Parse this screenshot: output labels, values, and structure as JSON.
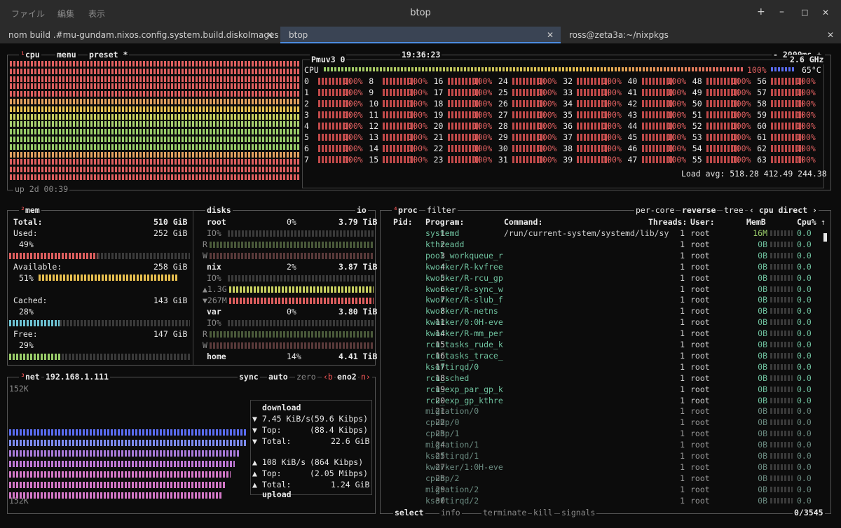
{
  "window": {
    "menu": [
      "ファイル",
      "編集",
      "表示"
    ],
    "title": "btop",
    "buttons": [
      "+",
      "–",
      "□",
      "✕"
    ]
  },
  "tabs": [
    {
      "label": "nom build .#mu-gundam.nixos.config.system.build.diskoImages"
    },
    {
      "label": "btop"
    },
    {
      "label": "ross@zeta3a:~/nixpkgs"
    }
  ],
  "cpu": {
    "key": "¹",
    "label": "cpu",
    "menu": "menu",
    "preset": "preset *",
    "clock": "19:36:23",
    "interval": "- 2000ms +",
    "model": "Pmuv3 0",
    "freq": "2.6 GHz",
    "total_label": "CPU",
    "total_pct": "100%",
    "temp": "65°C",
    "uptime": "up 2d 00:39",
    "load_label": "Load avg:",
    "load": "518.28  412.49  244.38",
    "usage": 1.0,
    "cores": [
      [
        "0",
        "100%"
      ],
      [
        "1",
        "100%"
      ],
      [
        "2",
        "100%"
      ],
      [
        "3",
        "100%"
      ],
      [
        "4",
        "100%"
      ],
      [
        "5",
        "100%"
      ],
      [
        "6",
        "100%"
      ],
      [
        "7",
        "100%"
      ],
      [
        "8",
        "100%"
      ],
      [
        "9",
        "100%"
      ],
      [
        "10",
        "100%"
      ],
      [
        "11",
        "100%"
      ],
      [
        "12",
        "100%"
      ],
      [
        "13",
        "100%"
      ],
      [
        "14",
        "100%"
      ],
      [
        "15",
        "100%"
      ],
      [
        "16",
        "100%"
      ],
      [
        "17",
        "100%"
      ],
      [
        "18",
        "100%"
      ],
      [
        "19",
        "100%"
      ],
      [
        "20",
        "100%"
      ],
      [
        "21",
        "100%"
      ],
      [
        "22",
        "100%"
      ],
      [
        "23",
        "100%"
      ],
      [
        "24",
        "100%"
      ],
      [
        "25",
        "100%"
      ],
      [
        "26",
        "100%"
      ],
      [
        "27",
        "100%"
      ],
      [
        "28",
        "100%"
      ],
      [
        "29",
        "100%"
      ],
      [
        "30",
        "100%"
      ],
      [
        "31",
        "100%"
      ],
      [
        "32",
        "100%"
      ],
      [
        "33",
        "100%"
      ],
      [
        "34",
        "100%"
      ],
      [
        "35",
        "100%"
      ],
      [
        "36",
        "100%"
      ],
      [
        "37",
        "100%"
      ],
      [
        "38",
        "100%"
      ],
      [
        "39",
        "100%"
      ],
      [
        "40",
        "100%"
      ],
      [
        "41",
        "100%"
      ],
      [
        "42",
        "100%"
      ],
      [
        "43",
        "100%"
      ],
      [
        "44",
        "100%"
      ],
      [
        "45",
        "100%"
      ],
      [
        "46",
        "100%"
      ],
      [
        "47",
        "100%"
      ],
      [
        "48",
        "100%"
      ],
      [
        "49",
        "100%"
      ],
      [
        "50",
        "100%"
      ],
      [
        "51",
        "100%"
      ],
      [
        "52",
        "100%"
      ],
      [
        "53",
        "100%"
      ],
      [
        "54",
        "100%"
      ],
      [
        "55",
        "100%"
      ],
      [
        "56",
        "100%"
      ],
      [
        "57",
        "100%"
      ],
      [
        "58",
        "100%"
      ],
      [
        "59",
        "100%"
      ],
      [
        "60",
        "100%"
      ],
      [
        "61",
        "100%"
      ],
      [
        "62",
        "100%"
      ],
      [
        "63",
        "100%"
      ]
    ]
  },
  "mem": {
    "key": "²",
    "label": "mem",
    "total_label": "Total:",
    "total": "510 GiB",
    "items": [
      {
        "label": "Used:",
        "value": "252 GiB",
        "pct": "49%",
        "frac": 0.49,
        "color": "#e06060"
      },
      {
        "label": "Available:",
        "value": "258 GiB",
        "pct": "51%",
        "frac": 0.51,
        "color": "#e8c050"
      },
      {
        "label": "Cached:",
        "value": "143 GiB",
        "pct": "28%",
        "frac": 0.28,
        "color": "#6ec3d4"
      },
      {
        "label": "Free:",
        "value": "147 GiB",
        "pct": "29%",
        "frac": 0.29,
        "color": "#9acd6a"
      }
    ]
  },
  "disks": {
    "label": "disks",
    "io": "io",
    "items": [
      {
        "name": "root",
        "pct": "0%",
        "size": "3.79 TiB",
        "io": "IO%",
        "r": "R",
        "w": "W"
      },
      {
        "name": "nix",
        "pct": "2%",
        "size": "3.87 TiB",
        "io": "IO%",
        "r": "▲1.3G",
        "w": "▼267M"
      },
      {
        "name": "var",
        "pct": "0%",
        "size": "3.80 TiB",
        "io": "IO%",
        "r": "R",
        "w": "W"
      },
      {
        "name": "home",
        "pct": "14%",
        "size": "4.41 TiB"
      }
    ]
  },
  "net": {
    "key": "³",
    "label": "net",
    "ip": "192.168.1.111",
    "controls": [
      "sync",
      "auto",
      "zero",
      "‹b",
      "eno2",
      "n›"
    ],
    "scale_top": "152K",
    "scale_bottom": "152K",
    "download": {
      "title": "download",
      "rate": "7.45 KiB/s",
      "rate_bits": "(59.6 Kibps)",
      "top_label": "Top:",
      "top": "(88.4 Kibps)",
      "total_label": "Total:",
      "total": "22.6 GiB"
    },
    "upload": {
      "title": "upload",
      "rate": "108 KiB/s",
      "rate_bits": "(864 Kibps)",
      "top_label": "Top:",
      "top": "(2.05 Mibps)",
      "total_label": "Total:",
      "total": "1.24 GiB"
    }
  },
  "proc": {
    "key": "⁴",
    "label": "proc",
    "filter": "filter",
    "options": [
      "per-core",
      "reverse",
      "tree",
      "‹ cpu direct ›"
    ],
    "headers": {
      "pid": "Pid:",
      "program": "Program:",
      "command": "Command:",
      "threads": "Threads:",
      "user": "User:",
      "mem": "MemB",
      "cpu": "Cpu%"
    },
    "rows": [
      {
        "pid": "1",
        "program": "systemd",
        "command": "/run/current-system/systemd/lib/sy",
        "threads": "1",
        "user": "root",
        "mem": "16M",
        "cpu": "0.0"
      },
      {
        "pid": "2",
        "program": "kthreadd",
        "command": "",
        "threads": "1",
        "user": "root",
        "mem": "0B",
        "cpu": "0.0"
      },
      {
        "pid": "3",
        "program": "pool_workqueue_r",
        "command": "",
        "threads": "1",
        "user": "root",
        "mem": "0B",
        "cpu": "0.0"
      },
      {
        "pid": "4",
        "program": "kworker/R-kvfree",
        "command": "",
        "threads": "1",
        "user": "root",
        "mem": "0B",
        "cpu": "0.0"
      },
      {
        "pid": "5",
        "program": "kworker/R-rcu_gp",
        "command": "",
        "threads": "1",
        "user": "root",
        "mem": "0B",
        "cpu": "0.0"
      },
      {
        "pid": "6",
        "program": "kworker/R-sync_w",
        "command": "",
        "threads": "1",
        "user": "root",
        "mem": "0B",
        "cpu": "0.0"
      },
      {
        "pid": "7",
        "program": "kworker/R-slub_f",
        "command": "",
        "threads": "1",
        "user": "root",
        "mem": "0B",
        "cpu": "0.0"
      },
      {
        "pid": "8",
        "program": "kworker/R-netns",
        "command": "",
        "threads": "1",
        "user": "root",
        "mem": "0B",
        "cpu": "0.0"
      },
      {
        "pid": "11",
        "program": "kworker/0:0H-eve",
        "command": "",
        "threads": "1",
        "user": "root",
        "mem": "0B",
        "cpu": "0.0"
      },
      {
        "pid": "14",
        "program": "kworker/R-mm_per",
        "command": "",
        "threads": "1",
        "user": "root",
        "mem": "0B",
        "cpu": "0.0"
      },
      {
        "pid": "15",
        "program": "rcu_tasks_rude_k",
        "command": "",
        "threads": "1",
        "user": "root",
        "mem": "0B",
        "cpu": "0.0"
      },
      {
        "pid": "16",
        "program": "rcu_tasks_trace_",
        "command": "",
        "threads": "1",
        "user": "root",
        "mem": "0B",
        "cpu": "0.0"
      },
      {
        "pid": "17",
        "program": "ksoftirqd/0",
        "command": "",
        "threads": "1",
        "user": "root",
        "mem": "0B",
        "cpu": "0.0"
      },
      {
        "pid": "18",
        "program": "rcu_sched",
        "command": "",
        "threads": "1",
        "user": "root",
        "mem": "0B",
        "cpu": "0.0"
      },
      {
        "pid": "19",
        "program": "rcu_exp_par_gp_k",
        "command": "",
        "threads": "1",
        "user": "root",
        "mem": "0B",
        "cpu": "0.0"
      },
      {
        "pid": "20",
        "program": "rcu_exp_gp_kthre",
        "command": "",
        "threads": "1",
        "user": "root",
        "mem": "0B",
        "cpu": "0.0"
      },
      {
        "pid": "21",
        "program": "migration/0",
        "command": "",
        "threads": "1",
        "user": "root",
        "mem": "0B",
        "cpu": "0.0"
      },
      {
        "pid": "22",
        "program": "cpuhp/0",
        "command": "",
        "threads": "1",
        "user": "root",
        "mem": "0B",
        "cpu": "0.0"
      },
      {
        "pid": "23",
        "program": "cpuhp/1",
        "command": "",
        "threads": "1",
        "user": "root",
        "mem": "0B",
        "cpu": "0.0"
      },
      {
        "pid": "24",
        "program": "migration/1",
        "command": "",
        "threads": "1",
        "user": "root",
        "mem": "0B",
        "cpu": "0.0"
      },
      {
        "pid": "25",
        "program": "ksoftirqd/1",
        "command": "",
        "threads": "1",
        "user": "root",
        "mem": "0B",
        "cpu": "0.0"
      },
      {
        "pid": "27",
        "program": "kworker/1:0H-eve",
        "command": "",
        "threads": "1",
        "user": "root",
        "mem": "0B",
        "cpu": "0.0"
      },
      {
        "pid": "28",
        "program": "cpuhp/2",
        "command": "",
        "threads": "1",
        "user": "root",
        "mem": "0B",
        "cpu": "0.0"
      },
      {
        "pid": "29",
        "program": "migration/2",
        "command": "",
        "threads": "1",
        "user": "root",
        "mem": "0B",
        "cpu": "0.0"
      },
      {
        "pid": "30",
        "program": "ksoftirqd/2",
        "command": "",
        "threads": "1",
        "user": "root",
        "mem": "0B",
        "cpu": "0.0"
      }
    ],
    "footer": {
      "select": "select",
      "info": "info",
      "terminate": "terminate",
      "kill": "kill",
      "signals": "signals",
      "count": "0/3545"
    }
  }
}
